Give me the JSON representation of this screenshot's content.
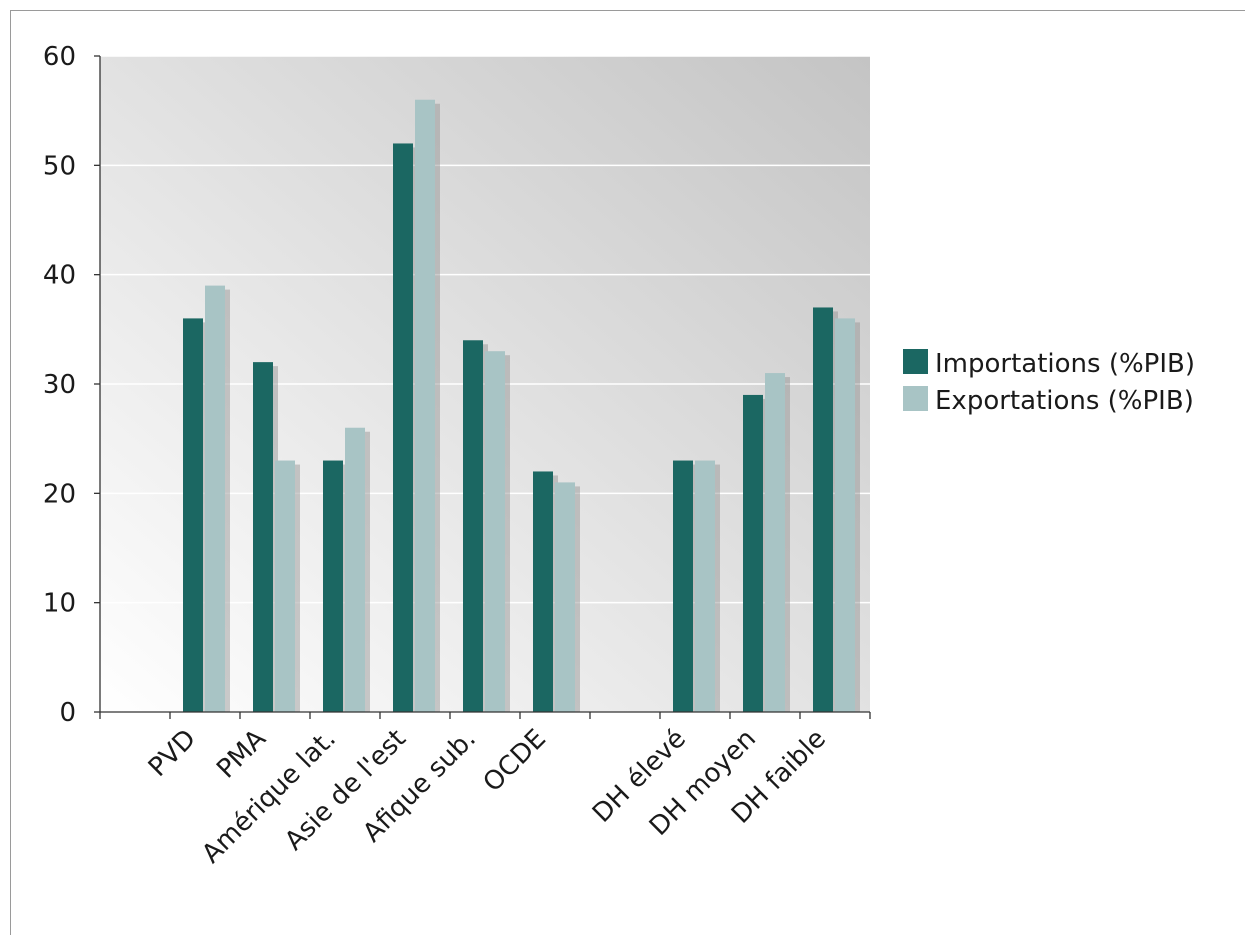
{
  "chart_data": {
    "type": "bar",
    "title": "",
    "xlabel": "",
    "ylabel": "",
    "ylim": [
      0,
      60
    ],
    "yticks": [
      0,
      10,
      20,
      30,
      40,
      50,
      60
    ],
    "categories": [
      "PVD",
      "PMA",
      "Amérique lat.",
      "Asie de l'est",
      "Afique sub.",
      "OCDE",
      "",
      "DH élevé",
      "DH moyen",
      "DH faible"
    ],
    "series": [
      {
        "name": "Importations (%PIB)",
        "color": "#1b6762",
        "values": [
          36,
          32,
          23,
          52,
          34,
          22,
          null,
          23,
          29,
          37
        ]
      },
      {
        "name": "Exportations (%PIB)",
        "color": "#a8c4c5",
        "values": [
          39,
          23,
          26,
          56,
          33,
          21,
          null,
          23,
          31,
          36
        ]
      }
    ],
    "grid": true,
    "legend_position": "right"
  }
}
